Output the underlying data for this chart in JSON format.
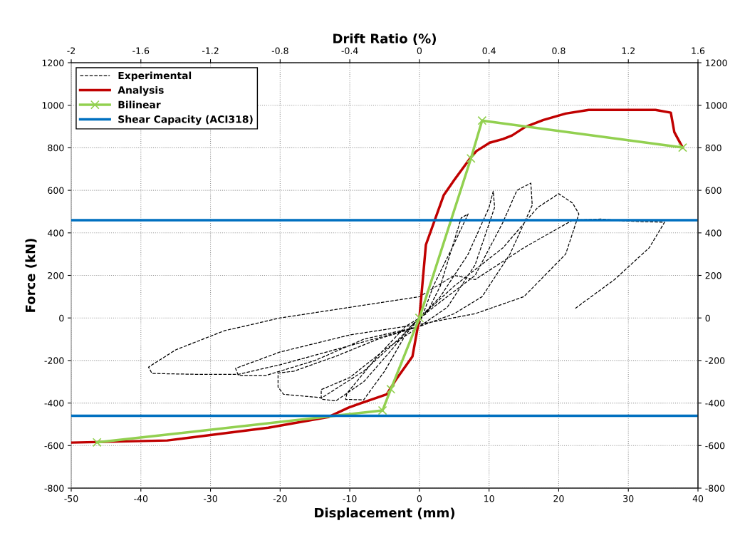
{
  "chart_data": {
    "type": "line",
    "xlabel": "Displacement (mm)",
    "ylabel": "Force (kN)",
    "x2label": "Drift Ratio (%)",
    "xlim": [
      -50,
      40
    ],
    "xticks": [
      -50,
      -40,
      -30,
      -20,
      -10,
      0,
      10,
      20,
      30,
      40
    ],
    "ylim": [
      -800,
      1200
    ],
    "yticks": [
      -800,
      -600,
      -400,
      -200,
      0,
      200,
      400,
      600,
      800,
      1000,
      1200
    ],
    "y2lim": [
      -800,
      1200
    ],
    "y2ticks": [
      -800,
      -600,
      -400,
      -200,
      0,
      200,
      400,
      600,
      800,
      1000,
      1200
    ],
    "x2lim": [
      -2,
      1.6
    ],
    "x2ticks": [
      -2,
      -1.6,
      -1.2,
      -0.8,
      -0.4,
      0,
      0.4,
      0.8,
      1.2,
      1.6
    ],
    "grid": true,
    "legend": "top left",
    "series": [
      {
        "name": "Experimental",
        "color": "#000000",
        "line_style": "dashed",
        "marker": "none",
        "x": [
          0,
          2,
          5,
          7,
          6,
          3,
          1,
          -2,
          -6,
          -10.4,
          -10.6,
          -8,
          -5,
          -2,
          0,
          3,
          7,
          10,
          10.6,
          10.8,
          8,
          4,
          0,
          -5,
          -10,
          -14.1,
          -14.1,
          -12,
          -8,
          -4,
          -1,
          2,
          8,
          12,
          14,
          16,
          16.2,
          13,
          9,
          5,
          0,
          -6,
          -12,
          -18,
          -20.3,
          -20.3,
          -19.5,
          -14,
          -8,
          -3,
          0,
          5,
          12,
          17,
          20,
          22,
          22.9,
          21,
          15,
          8,
          0,
          -10,
          -20,
          -26.4,
          -26,
          -22,
          -15,
          -8,
          0,
          -10,
          -20,
          -26,
          -32,
          -38.4,
          -38.9,
          -35,
          -28,
          -20,
          -10,
          0,
          5,
          8,
          15,
          22,
          26,
          30,
          35.2,
          33,
          28,
          22.3
        ],
        "values": [
          -30,
          150,
          350,
          489,
          470,
          150,
          20,
          -40,
          -180,
          -354,
          -383,
          -385,
          -250,
          -80,
          0,
          100,
          300,
          520,
          596,
          520,
          250,
          50,
          -40,
          -150,
          -280,
          -337,
          -382,
          -390,
          -300,
          -150,
          -30,
          50,
          200,
          450,
          600,
          634,
          530,
          300,
          100,
          20,
          -40,
          -100,
          -180,
          -250,
          -259,
          -325,
          -359,
          -375,
          -250,
          -100,
          0,
          150,
          330,
          520,
          584,
          540,
          489,
          300,
          100,
          20,
          -30,
          -80,
          -160,
          -237,
          -270,
          -270,
          -200,
          -100,
          -40,
          -130,
          -220,
          -265,
          -265,
          -261,
          -231,
          -150,
          -60,
          0,
          50,
          100,
          200,
          180,
          330,
          460,
          465,
          455,
          450,
          330,
          180,
          43
        ]
      },
      {
        "name": "Analysis",
        "color": "#c00000",
        "line_style": "solid",
        "marker": "none",
        "x": [
          -50,
          -36.2,
          -21.7,
          -13.1,
          -10.2,
          -7.3,
          -4.7,
          -3.4,
          -1,
          0,
          0.93,
          3.5,
          4.95,
          7.2,
          8.2,
          10.1,
          12,
          13.3,
          15.2,
          17.8,
          21,
          24.3,
          33.9,
          36.1,
          36.6,
          37.8
        ],
        "values": [
          -586,
          -576,
          -516,
          -466,
          -422,
          -388,
          -359,
          -292,
          -181,
          0,
          344,
          578,
          646,
          747,
          785,
          824,
          841,
          858,
          898,
          931,
          961,
          978,
          978,
          965,
          874,
          801
        ]
      },
      {
        "name": "Bilinear",
        "color": "#92d050",
        "line_style": "solid",
        "marker": "cross",
        "x": [
          -46.3,
          -5.3,
          -4.1,
          0,
          7.4,
          9.0,
          37.8
        ],
        "values": [
          -585,
          -435,
          -335,
          0,
          750,
          928,
          801
        ]
      },
      {
        "name": "Shear Capacity (ACI318)",
        "color": "#0070c0",
        "line_style": "solid",
        "marker": "none",
        "x": [
          -50,
          40
        ],
        "values": [
          460,
          460
        ]
      },
      {
        "color": "#0070c0",
        "line_style": "solid",
        "marker": "none",
        "x": [
          -50,
          40
        ],
        "values": [
          -460,
          -460
        ]
      }
    ]
  }
}
